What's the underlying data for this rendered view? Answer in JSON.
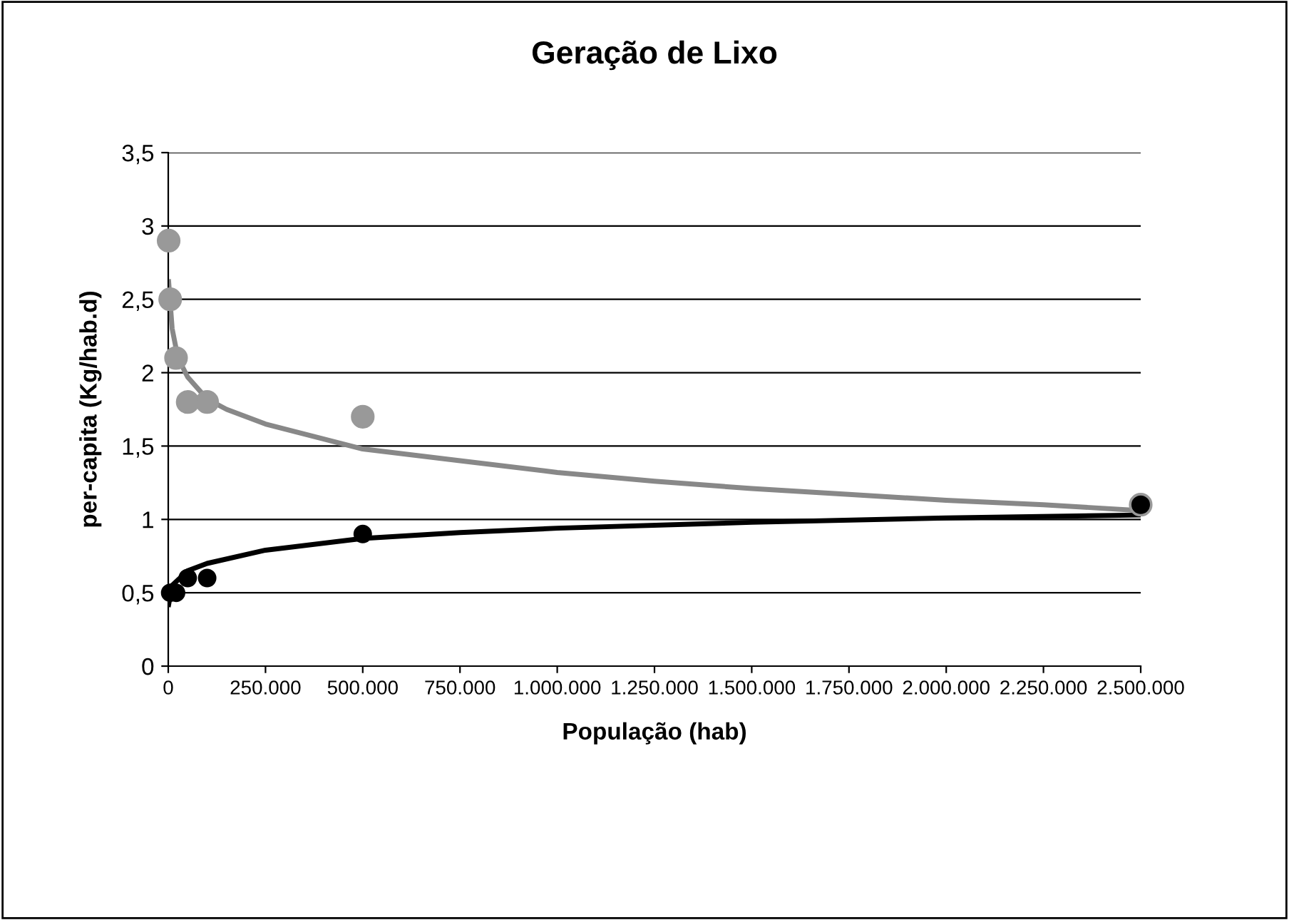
{
  "chart_data": {
    "type": "scatter",
    "title": "Geração de Lixo",
    "xlabel": "População (hab)",
    "ylabel": "per-capita (Kg/hab.d)",
    "xlim": [
      0,
      2500000
    ],
    "xticks": [
      {
        "value": 0,
        "label": "0"
      },
      {
        "value": 250000,
        "label": "250.000"
      },
      {
        "value": 500000,
        "label": "500.000"
      },
      {
        "value": 750000,
        "label": "750.000"
      },
      {
        "value": 1000000,
        "label": "1.000.000"
      },
      {
        "value": 1250000,
        "label": "1.250.000"
      },
      {
        "value": 1500000,
        "label": "1.500.000"
      },
      {
        "value": 1750000,
        "label": "1.750.000"
      },
      {
        "value": 2000000,
        "label": "2.000.000"
      },
      {
        "value": 2250000,
        "label": "2.250.000"
      },
      {
        "value": 2500000,
        "label": "2.500.000"
      }
    ],
    "ylim": [
      0,
      3.5
    ],
    "yticks": [
      {
        "value": 0,
        "label": "0"
      },
      {
        "value": 0.5,
        "label": "0,5"
      },
      {
        "value": 1,
        "label": "1"
      },
      {
        "value": 1.5,
        "label": "1,5"
      },
      {
        "value": 2,
        "label": "2"
      },
      {
        "value": 2.5,
        "label": "2,5"
      },
      {
        "value": 3,
        "label": "3"
      },
      {
        "value": 3.5,
        "label": "3,5"
      }
    ],
    "grid": "y",
    "legend": false,
    "series": [
      {
        "type": "line",
        "marker": "none",
        "color": "#888888",
        "x": [
          1000,
          10000,
          25000,
          50000,
          100000,
          150000,
          250000,
          500000,
          750000,
          1000000,
          1250000,
          1500000,
          1750000,
          2000000,
          2250000,
          2500000
        ],
        "values": [
          2.62,
          2.3,
          2.1,
          1.97,
          1.82,
          1.75,
          1.65,
          1.48,
          1.4,
          1.32,
          1.26,
          1.21,
          1.17,
          1.13,
          1.1,
          1.06
        ]
      },
      {
        "type": "line",
        "marker": "none",
        "color": "#000000",
        "x": [
          1000,
          10000,
          50000,
          100000,
          250000,
          500000,
          750000,
          1000000,
          1500000,
          2000000,
          2500000
        ],
        "values": [
          0.42,
          0.55,
          0.65,
          0.7,
          0.79,
          0.87,
          0.91,
          0.94,
          0.98,
          1.01,
          1.03
        ]
      },
      {
        "marker": "circle",
        "color": "#999999",
        "x": [
          1000,
          5000,
          20000,
          50000,
          100000,
          500000,
          2500000
        ],
        "values": [
          2.9,
          2.5,
          2.1,
          1.8,
          1.8,
          1.7,
          1.1
        ]
      },
      {
        "marker": "circle",
        "color": "#000000",
        "x": [
          5000,
          20000,
          50000,
          100000,
          500000,
          2500000
        ],
        "values": [
          0.5,
          0.5,
          0.6,
          0.6,
          0.9,
          1.1
        ]
      }
    ]
  }
}
